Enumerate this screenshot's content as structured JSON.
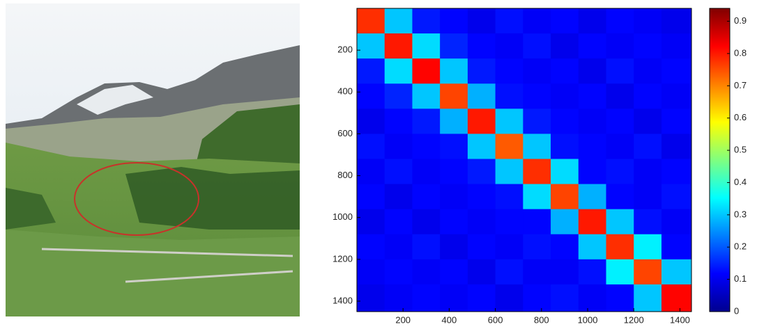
{
  "chart_data": {
    "type": "heatmap",
    "colormap": "jet",
    "bins": [
      0,
      120,
      240,
      360,
      480,
      600,
      720,
      840,
      960,
      1080,
      1200,
      1320,
      1450
    ],
    "xlim": [
      0,
      1450
    ],
    "ylim": [
      0,
      1450
    ],
    "y_inverted": true,
    "xticks": [
      200,
      400,
      600,
      800,
      1000,
      1200,
      1400
    ],
    "yticks": [
      200,
      400,
      600,
      800,
      1000,
      1200,
      1400
    ],
    "values": [
      [
        0.78,
        0.3,
        0.14,
        0.12,
        0.1,
        0.13,
        0.11,
        0.12,
        0.1,
        0.12,
        0.11,
        0.1
      ],
      [
        0.3,
        0.8,
        0.32,
        0.15,
        0.12,
        0.11,
        0.13,
        0.1,
        0.12,
        0.11,
        0.12,
        0.11
      ],
      [
        0.14,
        0.32,
        0.82,
        0.3,
        0.14,
        0.12,
        0.11,
        0.12,
        0.1,
        0.13,
        0.11,
        0.12
      ],
      [
        0.12,
        0.15,
        0.3,
        0.76,
        0.28,
        0.13,
        0.12,
        0.11,
        0.12,
        0.1,
        0.12,
        0.11
      ],
      [
        0.1,
        0.12,
        0.14,
        0.28,
        0.8,
        0.3,
        0.14,
        0.12,
        0.11,
        0.12,
        0.1,
        0.12
      ],
      [
        0.13,
        0.11,
        0.12,
        0.13,
        0.3,
        0.74,
        0.3,
        0.13,
        0.12,
        0.11,
        0.13,
        0.1
      ],
      [
        0.11,
        0.13,
        0.11,
        0.12,
        0.14,
        0.3,
        0.78,
        0.32,
        0.12,
        0.13,
        0.11,
        0.12
      ],
      [
        0.12,
        0.1,
        0.12,
        0.11,
        0.12,
        0.13,
        0.32,
        0.76,
        0.28,
        0.12,
        0.11,
        0.13
      ],
      [
        0.1,
        0.12,
        0.1,
        0.12,
        0.11,
        0.12,
        0.12,
        0.28,
        0.8,
        0.3,
        0.13,
        0.11
      ],
      [
        0.12,
        0.11,
        0.13,
        0.1,
        0.12,
        0.11,
        0.13,
        0.12,
        0.3,
        0.78,
        0.34,
        0.12
      ],
      [
        0.11,
        0.12,
        0.11,
        0.12,
        0.1,
        0.13,
        0.11,
        0.11,
        0.13,
        0.34,
        0.76,
        0.3
      ],
      [
        0.1,
        0.11,
        0.12,
        0.11,
        0.12,
        0.1,
        0.12,
        0.13,
        0.11,
        0.12,
        0.3,
        0.82
      ]
    ],
    "colorbar": {
      "lim": [
        0,
        0.94
      ],
      "ticks": [
        0,
        0.1,
        0.2,
        0.3,
        0.4,
        0.5,
        0.6,
        0.7,
        0.8,
        0.9
      ]
    }
  }
}
